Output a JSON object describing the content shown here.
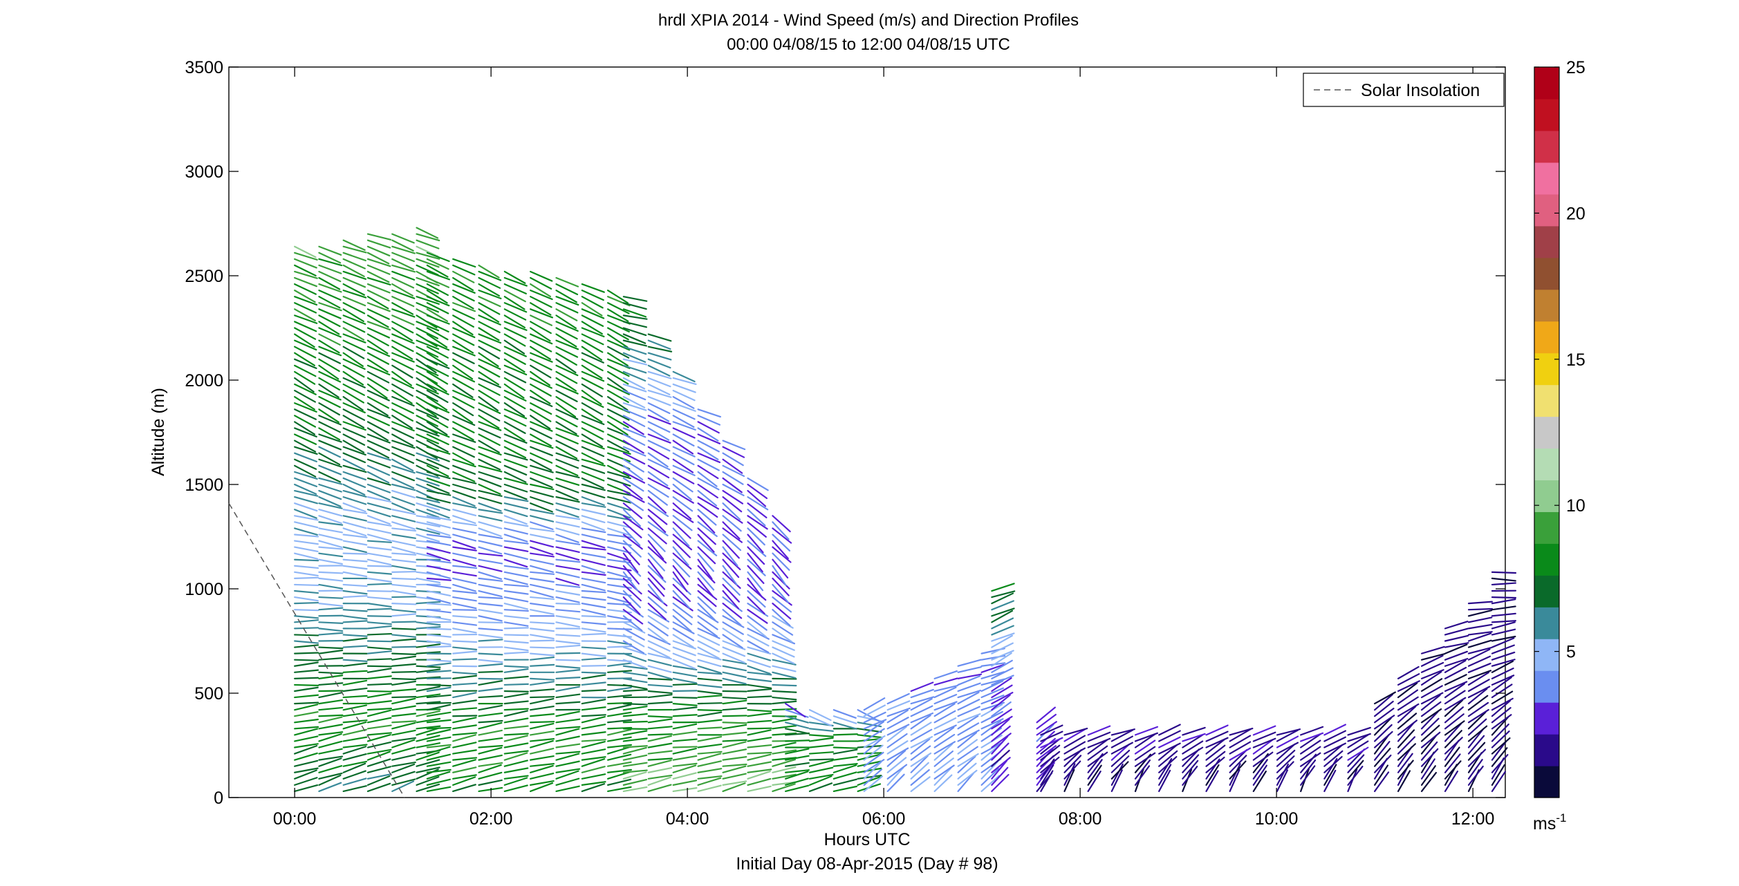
{
  "chart_data": {
    "type": "wind-barb-profile",
    "title": "hrdl XPIA 2014 - Wind Speed (m/s) and Direction Profiles",
    "subtitle": "00:00 04/08/15 to 12:00 04/08/15  UTC",
    "xlabel": "Hours UTC",
    "xlabel2": "Initial Day 08-Apr-2015 (Day # 98)",
    "ylabel": "Altitude (m)",
    "xlim": [
      -0.67,
      12.33
    ],
    "ylim": [
      0,
      3500
    ],
    "x_ticks": [
      0,
      2,
      4,
      6,
      8,
      10,
      12
    ],
    "x_tick_labels": [
      "00:00",
      "02:00",
      "04:00",
      "06:00",
      "08:00",
      "10:00",
      "12:00"
    ],
    "y_ticks": [
      0,
      500,
      1000,
      1500,
      2000,
      2500,
      3000,
      3500
    ],
    "y_tick_labels": [
      "0",
      "500",
      "1000",
      "1500",
      "2000",
      "2500",
      "3000",
      "3500"
    ],
    "legend": {
      "entries": [
        "Solar Insolation"
      ],
      "placement": "top-right",
      "line_style": "dashed"
    },
    "solar_insolation_line": {
      "x": [
        -0.67,
        1.12
      ],
      "y": [
        1410,
        0
      ]
    },
    "colorbar": {
      "label": "ms",
      "label_sup": "-1",
      "range": [
        0,
        25
      ],
      "ticks": [
        5,
        10,
        15,
        20,
        25
      ],
      "tick_labels": [
        "5",
        "10",
        "15",
        "20",
        "25"
      ],
      "colors": [
        "#0a0a3a",
        "#2a0a8a",
        "#5a20d8",
        "#6a8ef0",
        "#8fb6f6",
        "#3a8a9a",
        "#0a6a2a",
        "#0a8a1a",
        "#3aa03a",
        "#90cc90",
        "#b4dcb4",
        "#c8c8c8",
        "#f0e070",
        "#f0d010",
        "#f0a818",
        "#c08030",
        "#905030",
        "#a04048",
        "#e06080",
        "#f070a0",
        "#d03048",
        "#c01020",
        "#b00018"
      ]
    },
    "profile_groups": [
      {
        "t0": 0.0,
        "t1": 1.35,
        "bottom": 0,
        "top_start": 2650,
        "top_end": 2740,
        "profiles": 6,
        "speed": [
          [
            0,
            6.5
          ],
          [
            350,
            8.5
          ],
          [
            1000,
            5.2
          ],
          [
            1300,
            5.0
          ],
          [
            1800,
            7.5
          ],
          [
            2400,
            8.5
          ],
          [
            2700,
            9.5
          ]
        ],
        "dir": [
          [
            0,
            250
          ],
          [
            500,
            265
          ],
          [
            1100,
            275
          ],
          [
            1500,
            290
          ],
          [
            2000,
            300
          ],
          [
            2700,
            290
          ]
        ]
      },
      {
        "t0": 1.35,
        "t1": 3.35,
        "bottom": 0,
        "top_start": 2620,
        "top_end": 2450,
        "profiles": 8,
        "speed": [
          [
            0,
            8.0
          ],
          [
            300,
            8.5
          ],
          [
            700,
            5.2
          ],
          [
            1200,
            3.0
          ],
          [
            1500,
            7.5
          ],
          [
            2100,
            8.0
          ],
          [
            2600,
            8.5
          ]
        ],
        "dir": [
          [
            0,
            255
          ],
          [
            500,
            265
          ],
          [
            1000,
            280
          ],
          [
            1400,
            285
          ],
          [
            1900,
            300
          ],
          [
            2600,
            295
          ]
        ]
      },
      {
        "t0": 3.35,
        "t1": 5.0,
        "bottom": 0,
        "top_start": 2400,
        "top_end": 1370,
        "profiles": 7,
        "speed": [
          [
            0,
            10.0
          ],
          [
            400,
            8.0
          ],
          [
            700,
            5.0
          ],
          [
            1000,
            3.0
          ],
          [
            1400,
            3.2
          ],
          [
            1800,
            3.5
          ],
          [
            2300,
            7.5
          ]
        ],
        "dir": [
          [
            0,
            255
          ],
          [
            500,
            270
          ],
          [
            800,
            300
          ],
          [
            1100,
            320
          ],
          [
            1600,
            300
          ],
          [
            2300,
            285
          ]
        ]
      },
      {
        "t0": 5.0,
        "t1": 5.8,
        "bottom": 0,
        "top_start": 450,
        "top_end": 420,
        "profiles": 4,
        "speed": [
          [
            0,
            8.0
          ],
          [
            300,
            8.0
          ],
          [
            450,
            3.0
          ]
        ],
        "dir": [
          [
            0,
            250
          ],
          [
            300,
            270
          ],
          [
            450,
            300
          ]
        ]
      },
      {
        "t0": 5.8,
        "t1": 7.1,
        "bottom": 0,
        "top_start": 420,
        "top_end": 700,
        "profiles": 6,
        "speed": [
          [
            0,
            4.5
          ],
          [
            300,
            4.0
          ],
          [
            700,
            3.5
          ]
        ],
        "dir": [
          [
            0,
            225
          ],
          [
            300,
            240
          ],
          [
            700,
            260
          ]
        ]
      },
      {
        "t0": 7.1,
        "t1": 7.6,
        "bottom": 0,
        "top_start": 1000,
        "top_end": 380,
        "profiles": 2,
        "speed": [
          [
            0,
            2.5
          ],
          [
            500,
            3.0
          ],
          [
            1000,
            8.0
          ]
        ],
        "dir": [
          [
            0,
            220
          ],
          [
            500,
            240
          ],
          [
            1000,
            250
          ]
        ]
      },
      {
        "t0": 7.6,
        "t1": 11.0,
        "bottom": 0,
        "top_start": 300,
        "top_end": 300,
        "profiles": 14,
        "speed": [
          [
            0,
            1.2
          ],
          [
            300,
            2.0
          ]
        ],
        "dir": [
          [
            0,
            200
          ],
          [
            150,
            230
          ],
          [
            300,
            250
          ]
        ]
      },
      {
        "t0": 11.0,
        "t1": 12.3,
        "bottom": 0,
        "top_start": 450,
        "top_end": 1080,
        "profiles": 6,
        "speed": [
          [
            0,
            1.0
          ],
          [
            500,
            1.5
          ],
          [
            1000,
            1.5
          ]
        ],
        "dir": [
          [
            0,
            210
          ],
          [
            500,
            240
          ],
          [
            1000,
            270
          ]
        ]
      }
    ]
  }
}
